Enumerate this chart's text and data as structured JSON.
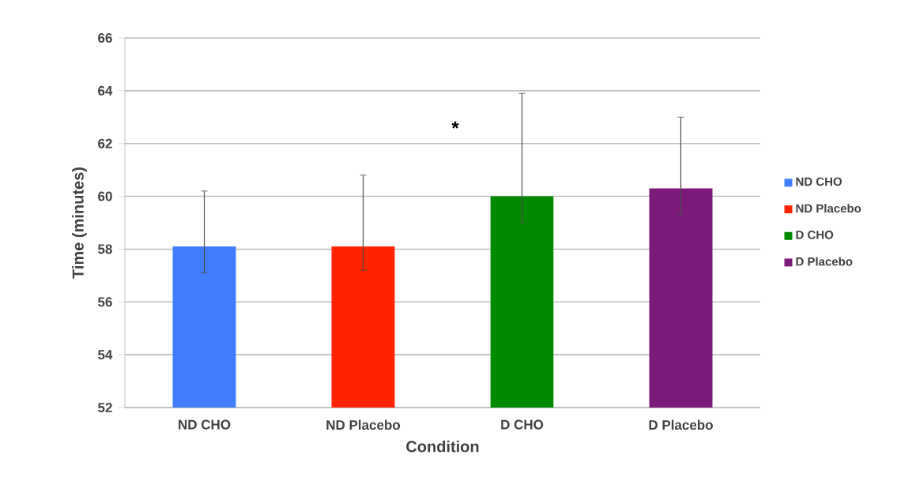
{
  "chart_data": {
    "type": "bar",
    "xlabel": "Condition",
    "ylabel": "Time (minutes)",
    "categories": [
      "ND CHO",
      "ND Placebo",
      "D CHO",
      "D Placebo"
    ],
    "series": [
      {
        "name": "ND CHO",
        "color": "#417dff",
        "values": [
          58.1,
          null,
          null,
          null
        ],
        "errors": [
          [
            57.1,
            60.2
          ],
          null,
          null,
          null
        ]
      },
      {
        "name": "ND Placebo",
        "color": "#ff2400",
        "values": [
          null,
          58.1,
          null,
          null
        ],
        "errors": [
          null,
          [
            57.2,
            60.8
          ],
          null,
          null
        ]
      },
      {
        "name": "D CHO",
        "color": "#008a00",
        "values": [
          null,
          null,
          60.0,
          null
        ],
        "errors": [
          null,
          null,
          [
            59.0,
            63.9
          ],
          null
        ]
      },
      {
        "name": "D Placebo",
        "color": "#7b1a78",
        "values": [
          null,
          null,
          null,
          60.3
        ],
        "errors": [
          null,
          null,
          null,
          [
            59.3,
            63.0
          ]
        ]
      }
    ],
    "ylim": [
      52,
      66
    ],
    "yticks": [
      52,
      54,
      56,
      58,
      60,
      62,
      64,
      66
    ],
    "grid": "y",
    "legend": "right",
    "annotations": [
      "*"
    ]
  }
}
